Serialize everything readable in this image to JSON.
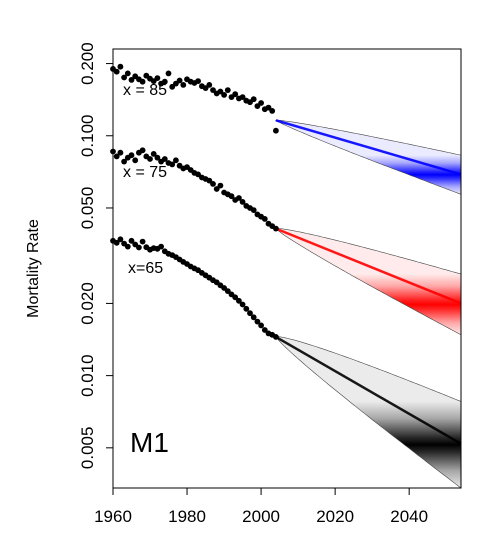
{
  "chart_data": {
    "type": "scatter",
    "title": "",
    "xlabel": "",
    "ylabel": "Mortality Rate",
    "panel_label": "M1",
    "xlim": [
      1960,
      2054
    ],
    "ylim": [
      0.0034,
      0.23
    ],
    "yscale": "log",
    "x_ticks": [
      1960,
      1980,
      2000,
      2020,
      2040
    ],
    "y_ticks": [
      0.005,
      0.01,
      0.02,
      0.05,
      0.1,
      0.2
    ],
    "y_tick_labels": [
      "0.005",
      "0.010",
      "0.020",
      "0.050",
      "0.100",
      "0.200"
    ],
    "grid": false,
    "series": [
      {
        "label": "x = 85",
        "color": "#0000ff",
        "observed": {
          "start_year": 1960,
          "values": [
            0.19,
            0.185,
            0.194,
            0.175,
            0.182,
            0.171,
            0.177,
            0.172,
            0.168,
            0.178,
            0.173,
            0.169,
            0.174,
            0.165,
            0.168,
            0.182,
            0.16,
            0.165,
            0.17,
            0.163,
            0.172,
            0.168,
            0.166,
            0.169,
            0.161,
            0.158,
            0.163,
            0.155,
            0.15,
            0.153,
            0.148,
            0.155,
            0.145,
            0.149,
            0.143,
            0.145,
            0.14,
            0.138,
            0.142,
            0.133,
            0.137,
            0.129,
            0.131,
            0.127,
            0.105
          ]
        },
        "forecast": {
          "start_year": 2004,
          "end_year": 2054,
          "median_start": 0.116,
          "median_end": 0.069,
          "lower_end": 0.057,
          "upper_end": 0.083
        }
      },
      {
        "label": "x = 75",
        "color": "#ff0000",
        "observed": {
          "start_year": 1960,
          "values": [
            0.086,
            0.082,
            0.085,
            0.078,
            0.081,
            0.083,
            0.079,
            0.085,
            0.087,
            0.082,
            0.08,
            0.084,
            0.081,
            0.078,
            0.08,
            0.077,
            0.076,
            0.079,
            0.075,
            0.073,
            0.074,
            0.072,
            0.07,
            0.069,
            0.067,
            0.066,
            0.065,
            0.063,
            0.06,
            0.062,
            0.058,
            0.057,
            0.056,
            0.054,
            0.055,
            0.053,
            0.051,
            0.05,
            0.049,
            0.047,
            0.046,
            0.045,
            0.043,
            0.042,
            0.041
          ]
        },
        "forecast": {
          "start_year": 2004,
          "end_year": 2054,
          "median_start": 0.041,
          "median_end": 0.02,
          "lower_end": 0.0148,
          "upper_end": 0.0265
        }
      },
      {
        "label": "x=65",
        "color": "#000000",
        "observed": {
          "start_year": 1960,
          "values": [
            0.0365,
            0.0358,
            0.037,
            0.0355,
            0.0345,
            0.0365,
            0.0352,
            0.0342,
            0.0362,
            0.0343,
            0.0335,
            0.034,
            0.0338,
            0.0345,
            0.033,
            0.0322,
            0.0318,
            0.0312,
            0.0305,
            0.0298,
            0.0292,
            0.0285,
            0.028,
            0.0275,
            0.0268,
            0.0262,
            0.0256,
            0.025,
            0.0245,
            0.0238,
            0.0232,
            0.0225,
            0.0218,
            0.0212,
            0.0205,
            0.0198,
            0.019,
            0.0182,
            0.0175,
            0.0168,
            0.0162,
            0.0155,
            0.015,
            0.0148,
            0.0145
          ]
        },
        "forecast": {
          "start_year": 2004,
          "end_year": 2054,
          "median_start": 0.0145,
          "median_end": 0.0052,
          "lower_end": 0.0034,
          "upper_end": 0.0078
        }
      }
    ]
  }
}
